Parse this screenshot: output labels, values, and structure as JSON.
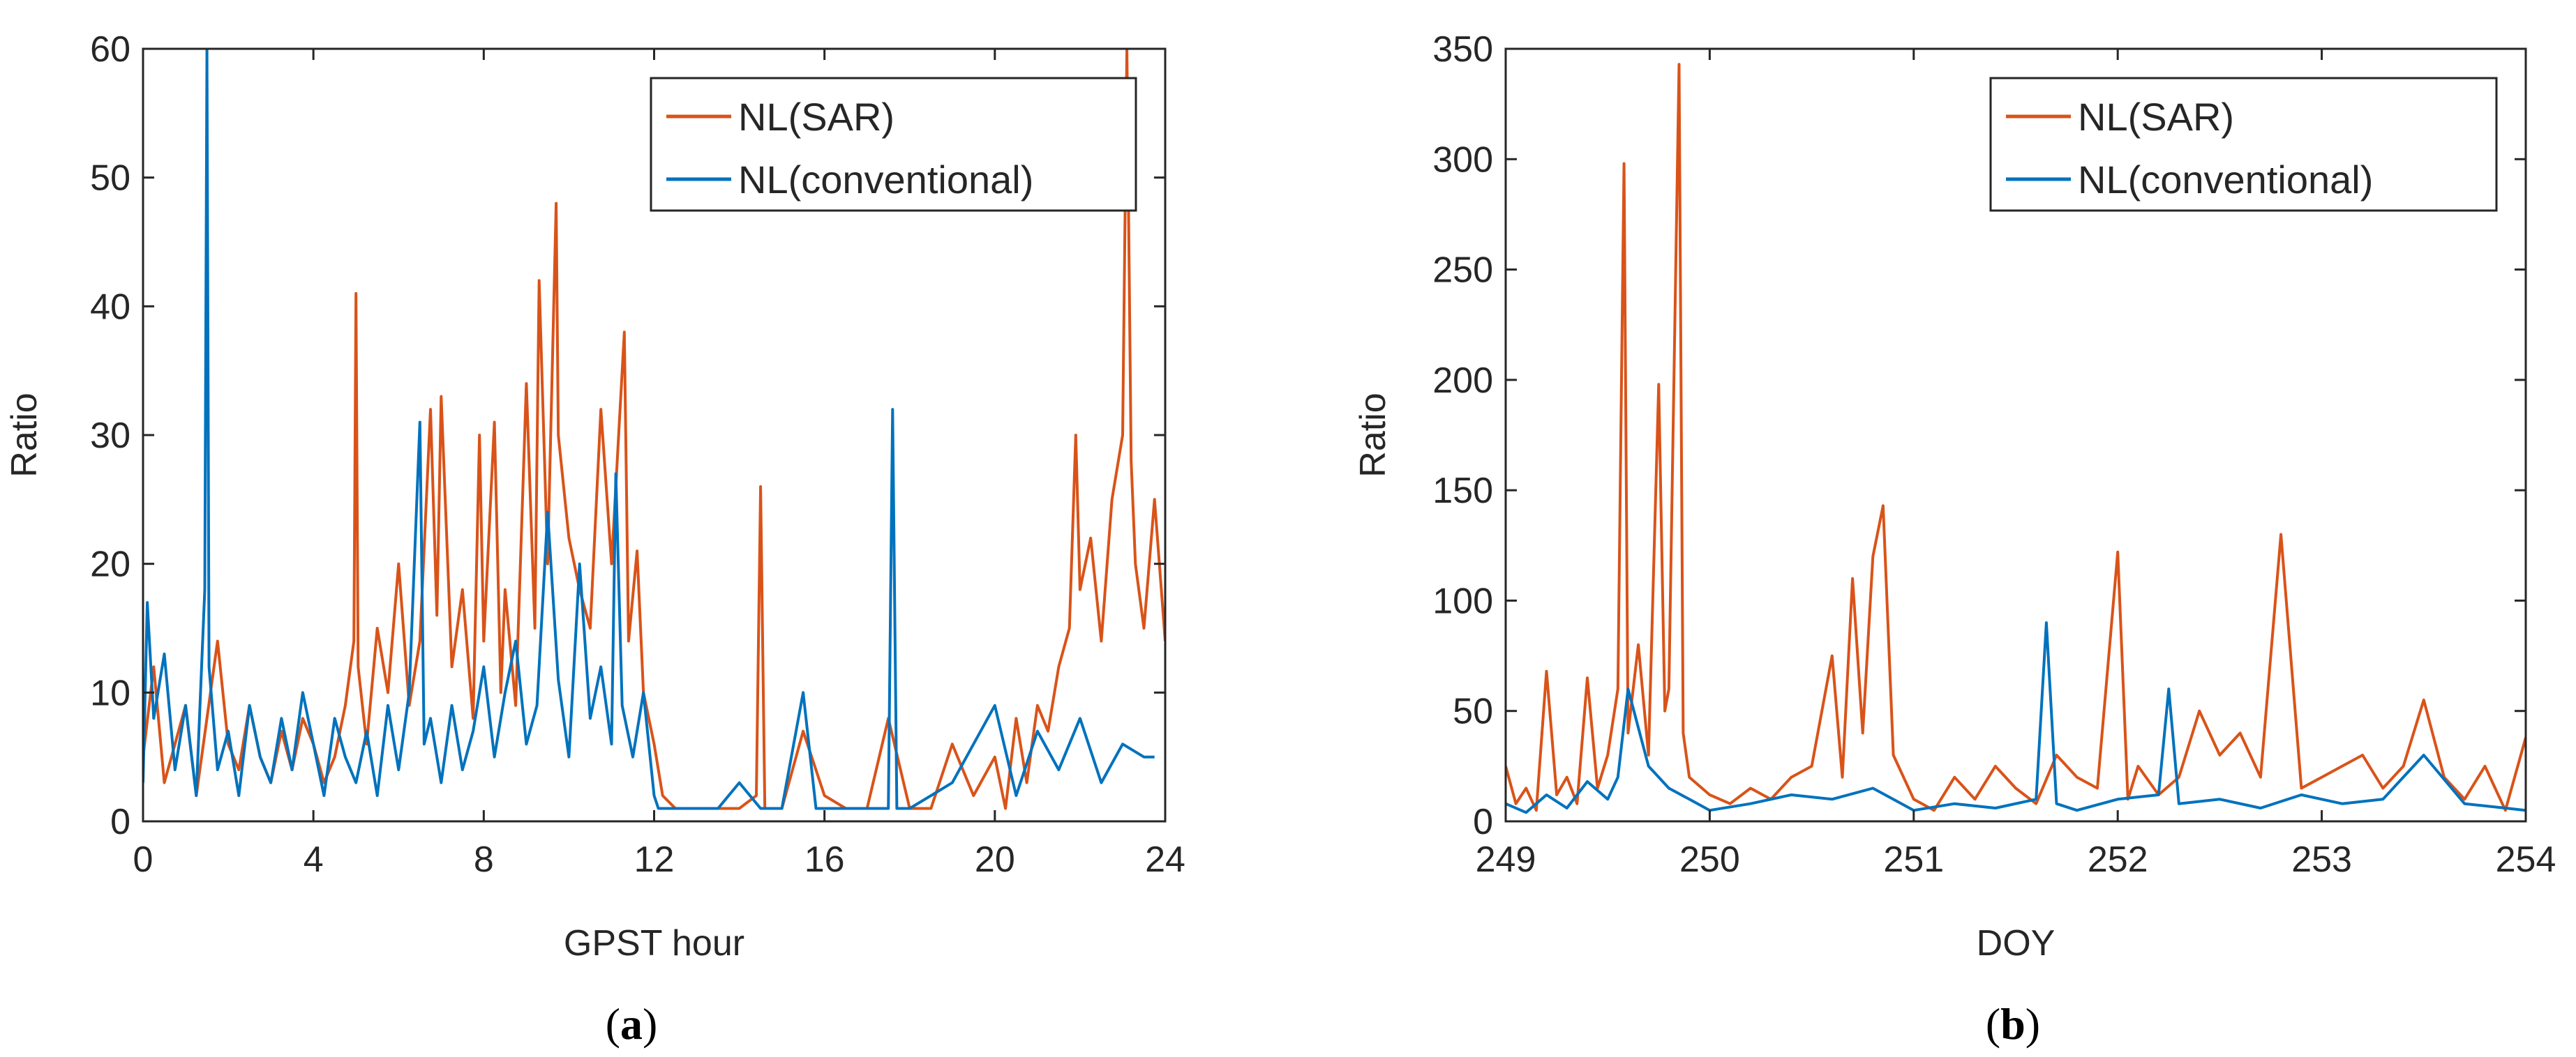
{
  "chart_data": [
    {
      "type": "line",
      "panel": "a",
      "panel_label": {
        "open": "(",
        "letter": "a",
        "close": ")"
      },
      "title": "",
      "xlabel": "GPST hour",
      "ylabel": "Ratio",
      "xlim": [
        0,
        24
      ],
      "ylim": [
        0,
        60
      ],
      "xticks": [
        0,
        4,
        8,
        12,
        16,
        20,
        24
      ],
      "yticks": [
        0,
        10,
        20,
        30,
        40,
        50,
        60
      ],
      "legend_position": "top-right",
      "series": [
        {
          "name": "NL(SAR)",
          "color": "#D95319",
          "x": [
            0,
            0.25,
            0.5,
            0.75,
            1,
            1.25,
            1.5,
            1.75,
            2,
            2.25,
            2.5,
            2.75,
            3,
            3.25,
            3.5,
            3.75,
            4,
            4.25,
            4.5,
            4.75,
            4.95,
            5.0,
            5.05,
            5.25,
            5.5,
            5.75,
            6,
            6.25,
            6.5,
            6.75,
            6.9,
            7.0,
            7.25,
            7.5,
            7.75,
            7.9,
            8.0,
            8.25,
            8.4,
            8.5,
            8.75,
            9.0,
            9.2,
            9.3,
            9.5,
            9.7,
            9.75,
            10.0,
            10.25,
            10.5,
            10.75,
            11.0,
            11.3,
            11.4,
            11.6,
            11.75,
            12.0,
            12.2,
            12.5,
            13,
            13.5,
            14,
            14.4,
            14.5,
            14.6,
            15,
            15.5,
            16,
            16.5,
            17,
            17.5,
            18,
            18.5,
            19,
            19.5,
            20,
            20.25,
            20.5,
            20.75,
            21,
            21.25,
            21.5,
            21.75,
            21.9,
            22.0,
            22.25,
            22.5,
            22.75,
            23.0,
            23.1,
            23.2,
            23.3,
            23.5,
            23.75,
            24
          ],
          "values": [
            5,
            12,
            3,
            6,
            9,
            2,
            8,
            14,
            6,
            4,
            9,
            5,
            3,
            7,
            4,
            8,
            6,
            3,
            5,
            9,
            14,
            41,
            12,
            6,
            15,
            10,
            20,
            9,
            14,
            32,
            16,
            33,
            12,
            18,
            8,
            30,
            14,
            31,
            10,
            18,
            9,
            34,
            15,
            42,
            20,
            48,
            30,
            22,
            18,
            15,
            32,
            20,
            38,
            14,
            21,
            10,
            6,
            2,
            1,
            1,
            1,
            1,
            2,
            26,
            1,
            1,
            7,
            2,
            1,
            1,
            8,
            1,
            1,
            6,
            2,
            5,
            1,
            8,
            3,
            9,
            7,
            12,
            15,
            30,
            18,
            22,
            14,
            25,
            30,
            60,
            28,
            20,
            15,
            25,
            14
          ]
        },
        {
          "name": "NL(conventional)",
          "color": "#0072BD",
          "x": [
            0,
            0.1,
            0.25,
            0.5,
            0.75,
            1,
            1.25,
            1.45,
            1.5,
            1.55,
            1.75,
            2,
            2.25,
            2.5,
            2.75,
            3,
            3.25,
            3.5,
            3.75,
            4,
            4.25,
            4.5,
            4.75,
            5,
            5.25,
            5.5,
            5.75,
            6,
            6.25,
            6.5,
            6.6,
            6.75,
            7,
            7.25,
            7.5,
            7.75,
            8,
            8.25,
            8.5,
            8.75,
            9,
            9.25,
            9.5,
            9.75,
            10,
            10.25,
            10.5,
            10.75,
            11,
            11.1,
            11.25,
            11.5,
            11.75,
            12,
            12.1,
            12.5,
            13,
            13.5,
            14,
            14.5,
            15,
            15.5,
            15.8,
            16,
            16.5,
            17,
            17.5,
            17.6,
            17.7,
            18,
            18.5,
            19,
            19.5,
            20,
            20.5,
            21,
            21.5,
            22,
            22.5,
            23,
            23.5,
            23.75
          ],
          "values": [
            3,
            17,
            8,
            13,
            4,
            9,
            2,
            18,
            60,
            12,
            4,
            7,
            2,
            9,
            5,
            3,
            8,
            4,
            10,
            6,
            2,
            8,
            5,
            3,
            7,
            2,
            9,
            4,
            10,
            31,
            6,
            8,
            3,
            9,
            4,
            7,
            12,
            5,
            10,
            14,
            6,
            9,
            24,
            11,
            5,
            20,
            8,
            12,
            6,
            27,
            9,
            5,
            10,
            2,
            1,
            1,
            1,
            1,
            3,
            1,
            1,
            10,
            1,
            1,
            1,
            1,
            1,
            32,
            1,
            1,
            2,
            3,
            6,
            9,
            2,
            7,
            4,
            8,
            3,
            6,
            5,
            5
          ]
        }
      ]
    },
    {
      "type": "line",
      "panel": "b",
      "panel_label": {
        "open": "(",
        "letter": "b",
        "close": ")"
      },
      "title": "",
      "xlabel": "DOY",
      "ylabel": "Ratio",
      "xlim": [
        249,
        254
      ],
      "ylim": [
        0,
        350
      ],
      "xticks": [
        249,
        250,
        251,
        252,
        253,
        254
      ],
      "yticks": [
        0,
        50,
        100,
        150,
        200,
        250,
        300,
        350
      ],
      "legend_position": "top-right",
      "series": [
        {
          "name": "NL(SAR)",
          "color": "#D95319",
          "x": [
            249.0,
            249.05,
            249.1,
            249.15,
            249.2,
            249.25,
            249.3,
            249.35,
            249.4,
            249.45,
            249.5,
            249.55,
            249.58,
            249.6,
            249.65,
            249.7,
            249.75,
            249.78,
            249.8,
            249.85,
            249.87,
            249.9,
            250.0,
            250.1,
            250.2,
            250.3,
            250.4,
            250.5,
            250.6,
            250.65,
            250.7,
            250.75,
            250.8,
            250.85,
            250.9,
            251.0,
            251.1,
            251.2,
            251.3,
            251.4,
            251.5,
            251.6,
            251.7,
            251.8,
            251.9,
            252.0,
            252.05,
            252.1,
            252.2,
            252.3,
            252.4,
            252.5,
            252.6,
            252.7,
            252.8,
            252.9,
            253.0,
            253.1,
            253.2,
            253.3,
            253.4,
            253.5,
            253.6,
            253.7,
            253.8,
            253.9,
            254.0
          ],
          "values": [
            25,
            8,
            15,
            5,
            68,
            12,
            20,
            8,
            65,
            15,
            30,
            60,
            298,
            40,
            80,
            30,
            198,
            50,
            60,
            343,
            40,
            20,
            12,
            8,
            15,
            10,
            20,
            25,
            75,
            20,
            110,
            40,
            120,
            143,
            30,
            10,
            5,
            20,
            10,
            25,
            15,
            8,
            30,
            20,
            15,
            122,
            10,
            25,
            12,
            20,
            50,
            30,
            40,
            20,
            130,
            15,
            20,
            25,
            30,
            15,
            25,
            55,
            20,
            10,
            25,
            5,
            38
          ]
        },
        {
          "name": "NL(conventional)",
          "color": "#0072BD",
          "x": [
            249.0,
            249.1,
            249.2,
            249.3,
            249.4,
            249.5,
            249.55,
            249.6,
            249.7,
            249.8,
            249.9,
            250.0,
            250.2,
            250.4,
            250.6,
            250.8,
            251.0,
            251.2,
            251.4,
            251.6,
            251.65,
            251.7,
            251.8,
            252.0,
            252.2,
            252.25,
            252.3,
            252.5,
            252.7,
            252.9,
            253.1,
            253.3,
            253.5,
            253.7,
            253.9,
            254.0
          ],
          "values": [
            8,
            4,
            12,
            6,
            18,
            10,
            20,
            60,
            25,
            15,
            10,
            5,
            8,
            12,
            10,
            15,
            5,
            8,
            6,
            10,
            90,
            8,
            5,
            10,
            12,
            60,
            8,
            10,
            6,
            12,
            8,
            10,
            30,
            8,
            6,
            5
          ]
        }
      ]
    }
  ]
}
